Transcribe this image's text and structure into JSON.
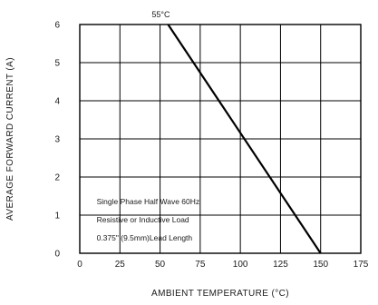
{
  "chart_data": {
    "type": "line",
    "title": "",
    "xlabel": "AMBIENT TEMPERATURE (°C)",
    "ylabel": "AVERAGE FORWARD CURRENT (A)",
    "xlim": [
      0,
      175
    ],
    "ylim": [
      0,
      6
    ],
    "xticks": [
      0,
      25,
      50,
      75,
      100,
      125,
      150,
      175
    ],
    "yticks": [
      0,
      1,
      2,
      3,
      4,
      5,
      6
    ],
    "grid": true,
    "series": [
      {
        "x": [
          55,
          150
        ],
        "y": [
          6,
          0
        ]
      }
    ],
    "annotation": {
      "text": "55°C",
      "x": 55,
      "y": 6
    },
    "notes": [
      "Single Phase Half Wave 60Hz",
      "Resistive or Inductive Load",
      "0.375\" (9.5mm)Lead Length"
    ]
  }
}
